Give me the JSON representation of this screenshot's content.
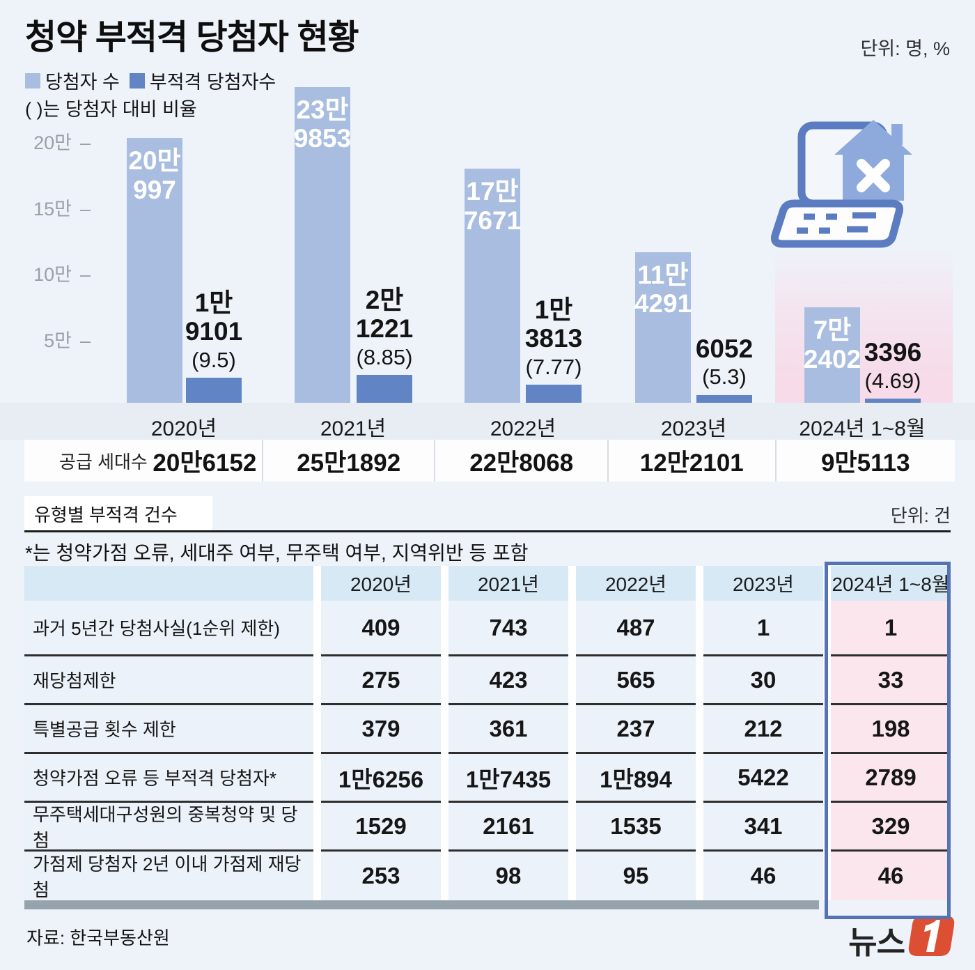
{
  "title": "청약 부적격 당첨자 현황",
  "unit_top": "단위: 명, %",
  "legend": {
    "winners": "당첨자 수",
    "ineligible": "부적격 당첨자수",
    "note": "( )는 당첨자 대비 비율"
  },
  "chart_data": {
    "type": "bar",
    "title": "청약 부적격 당첨자 현황",
    "categories": [
      "2020년",
      "2021년",
      "2022년",
      "2023년",
      "2024년 1~8월"
    ],
    "series": [
      {
        "name": "당첨자 수",
        "values": [
          200997,
          239853,
          177671,
          114291,
          72402
        ],
        "value_labels": [
          [
            "20만",
            "997"
          ],
          [
            "23만",
            "9853"
          ],
          [
            "17만",
            "7671"
          ],
          [
            "11만",
            "4291"
          ],
          [
            "7만",
            "2402"
          ]
        ],
        "color": "#a9bde1"
      },
      {
        "name": "부적격 당첨자수",
        "values": [
          19101,
          21221,
          13813,
          6052,
          3396
        ],
        "value_labels": [
          [
            "1만",
            "9101"
          ],
          [
            "2만",
            "1221"
          ],
          [
            "1만",
            "3813"
          ],
          [
            "6052"
          ],
          [
            "3396"
          ]
        ],
        "ratios": [
          "(9.5)",
          "(8.85)",
          "(7.77)",
          "(5.3)",
          "(4.69)"
        ],
        "color": "#6084c4"
      }
    ],
    "y_ticks": [
      {
        "label": "20만",
        "value": 200000
      },
      {
        "label": "15만",
        "value": 150000
      },
      {
        "label": "10만",
        "value": 100000
      },
      {
        "label": "5만",
        "value": 50000
      }
    ],
    "ylim": [
      0,
      240000
    ],
    "grid": false,
    "legend_position": "top-left"
  },
  "supply": {
    "label": "공급 세대수",
    "values": [
      "20만6152",
      "25만1892",
      "22만8068",
      "12만2101",
      "9만5113"
    ]
  },
  "section2": {
    "title": "유형별 부적격 건수",
    "unit": "단위: 건",
    "footnote": "*는 청약가점 오류, 세대주 여부, 무주택 여부, 지역위반 등 포함"
  },
  "table": {
    "columns": [
      "2020년",
      "2021년",
      "2022년",
      "2023년",
      "2024년 1~8월"
    ],
    "highlight_column": "2024년 1~8월",
    "rows": [
      {
        "label": "과거 5년간 당첨사실(1순위 제한)",
        "values": [
          "409",
          "743",
          "487",
          "1",
          "1"
        ]
      },
      {
        "label": "재당첨제한",
        "values": [
          "275",
          "423",
          "565",
          "30",
          "33"
        ]
      },
      {
        "label": "특별공급 횟수 제한",
        "values": [
          "379",
          "361",
          "237",
          "212",
          "198"
        ]
      },
      {
        "label": "청약가점 오류 등 부적격 당첨자*",
        "values": [
          "1만6256",
          "1만7435",
          "1만894",
          "5422",
          "2789"
        ]
      },
      {
        "label": "무주택세대구성원의 중복청약 및 당첨",
        "values": [
          "1529",
          "2161",
          "1535",
          "341",
          "329"
        ]
      },
      {
        "label": "가점제 당첨자 2년 이내 가점제 재당첨",
        "values": [
          "253",
          "98",
          "95",
          "46",
          "46"
        ]
      }
    ]
  },
  "footer": {
    "source": "자료: 한국부동산원",
    "logo_text": "뉴스",
    "logo_one": "1"
  },
  "colors": {
    "background": "#eef3fa",
    "bar_light": "#a9bde1",
    "bar_dark": "#6084c4",
    "band": "#e8edf4",
    "table_header": "#d7e9f5",
    "highlight_pink": "#fbe6ee",
    "highlight_border": "#5473b5",
    "footer_bar": "#96a2ac",
    "logo_orange": "#dc4f33"
  }
}
